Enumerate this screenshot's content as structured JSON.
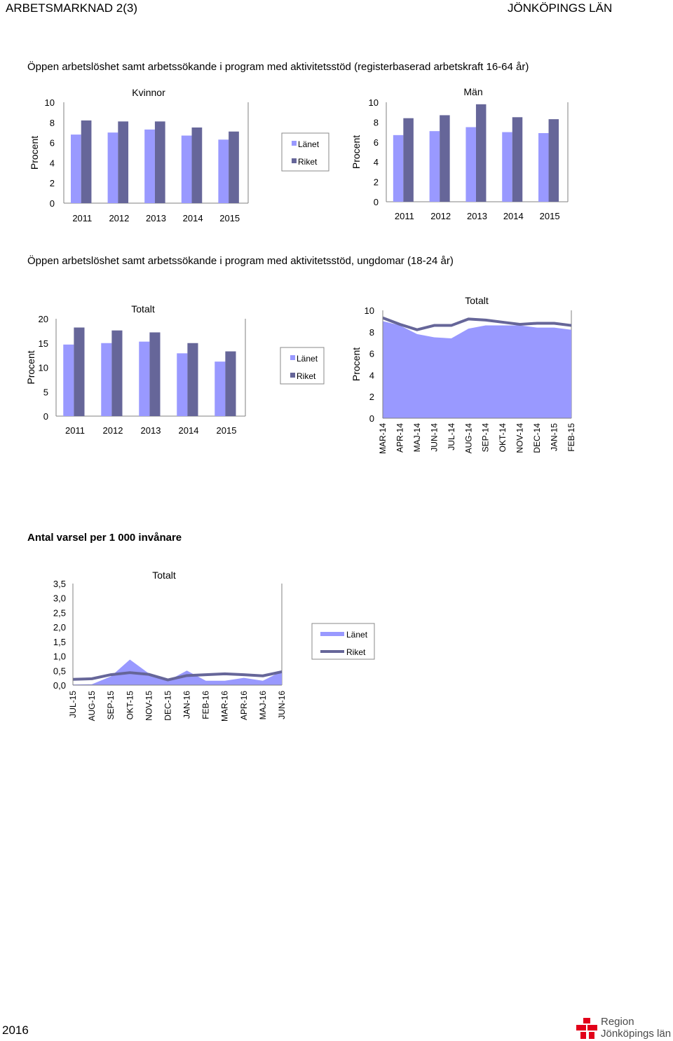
{
  "header": {
    "left": "ARBETSMARKNAD 2(3)",
    "right": "JÖNKÖPINGS LÄN"
  },
  "sections": {
    "s1_title": "Öppen arbetslöshet samt arbetssökande i program med aktivitetsstöd (registerbaserad arbetskraft 16-64 år)",
    "s2_title": "Öppen arbetslöshet samt arbetssökande i program med aktivitetsstöd, ungdomar (18-24 år)",
    "s3_title": "Antal varsel per 1 000 invånare"
  },
  "legend": {
    "lanet": "Länet",
    "riket": "Riket"
  },
  "colors": {
    "lanet": "#9999ff",
    "riket": "#666699",
    "axis": "#808080"
  },
  "footer": {
    "year": "2016",
    "logo_line1": "Region",
    "logo_line2": "Jönköpings län"
  },
  "chart_data": [
    {
      "id": "kvinnor",
      "type": "bar",
      "title": "Kvinnor",
      "ylabel": "Procent",
      "ylim": [
        0,
        10
      ],
      "yticks": [
        "0",
        "2",
        "4",
        "6",
        "8",
        "10"
      ],
      "categories": [
        "2011",
        "2012",
        "2013",
        "2014",
        "2015"
      ],
      "series": [
        {
          "name": "Länet",
          "values": [
            6.8,
            7.0,
            7.3,
            6.7,
            6.3
          ]
        },
        {
          "name": "Riket",
          "values": [
            8.2,
            8.1,
            8.1,
            7.5,
            7.1
          ]
        }
      ]
    },
    {
      "id": "man",
      "type": "bar",
      "title": "Män",
      "ylabel": "Procent",
      "ylim": [
        0,
        10
      ],
      "yticks": [
        "0",
        "2",
        "4",
        "6",
        "8",
        "10"
      ],
      "categories": [
        "2011",
        "2012",
        "2013",
        "2014",
        "2015"
      ],
      "series": [
        {
          "name": "Länet",
          "values": [
            6.7,
            7.1,
            7.5,
            7.0,
            6.9
          ]
        },
        {
          "name": "Riket",
          "values": [
            8.4,
            8.7,
            9.8,
            8.5,
            8.3
          ]
        }
      ]
    },
    {
      "id": "ung_bar",
      "type": "bar",
      "title": "Totalt",
      "ylabel": "Procent",
      "ylim": [
        0,
        20
      ],
      "yticks": [
        "0",
        "5",
        "10",
        "15",
        "20"
      ],
      "categories": [
        "2011",
        "2012",
        "2013",
        "2014",
        "2015"
      ],
      "series": [
        {
          "name": "Länet",
          "values": [
            14.7,
            15.0,
            15.3,
            12.9,
            11.2
          ]
        },
        {
          "name": "Riket",
          "values": [
            18.2,
            17.6,
            17.2,
            15.0,
            13.3
          ]
        }
      ]
    },
    {
      "id": "ung_area",
      "type": "area",
      "title": "Totalt",
      "ylabel": "Procent",
      "ylim": [
        0,
        10
      ],
      "yticks": [
        "0",
        "2",
        "4",
        "6",
        "8",
        "10"
      ],
      "categories": [
        "MAR-14",
        "APR-14",
        "MAJ-14",
        "JUN-14",
        "JUL-14",
        "AUG-14",
        "SEP-14",
        "OKT-14",
        "NOV-14",
        "DEC-14",
        "JAN-15",
        "FEB-15"
      ],
      "series": [
        {
          "name": "Länet",
          "kind": "area",
          "values": [
            9.0,
            8.6,
            7.8,
            7.5,
            7.4,
            8.3,
            8.6,
            8.6,
            8.6,
            8.4,
            8.4,
            8.2
          ]
        },
        {
          "name": "Riket",
          "kind": "line",
          "values": [
            9.3,
            8.7,
            8.2,
            8.6,
            8.6,
            9.2,
            9.1,
            8.9,
            8.7,
            8.8,
            8.8,
            8.6
          ]
        }
      ]
    },
    {
      "id": "varsel",
      "type": "area",
      "title": "Totalt",
      "ylabel": "",
      "ylim": [
        0,
        3.5
      ],
      "yticks": [
        "0,0",
        "0,5",
        "1,0",
        "1,5",
        "2,0",
        "2,5",
        "3,0",
        "3,5"
      ],
      "categories": [
        "JUL-15",
        "AUG-15",
        "SEP-15",
        "OKT-15",
        "NOV-15",
        "DEC-15",
        "JAN-16",
        "FEB-16",
        "MAR-16",
        "APR-16",
        "MAJ-16",
        "JUN-16"
      ],
      "series": [
        {
          "name": "Länet",
          "kind": "area",
          "values": [
            0.02,
            0.03,
            0.3,
            0.88,
            0.4,
            0.15,
            0.5,
            0.15,
            0.15,
            0.25,
            0.15,
            0.48
          ]
        },
        {
          "name": "Riket",
          "kind": "line",
          "values": [
            0.2,
            0.22,
            0.36,
            0.43,
            0.37,
            0.18,
            0.33,
            0.36,
            0.39,
            0.36,
            0.32,
            0.46
          ]
        }
      ]
    }
  ]
}
